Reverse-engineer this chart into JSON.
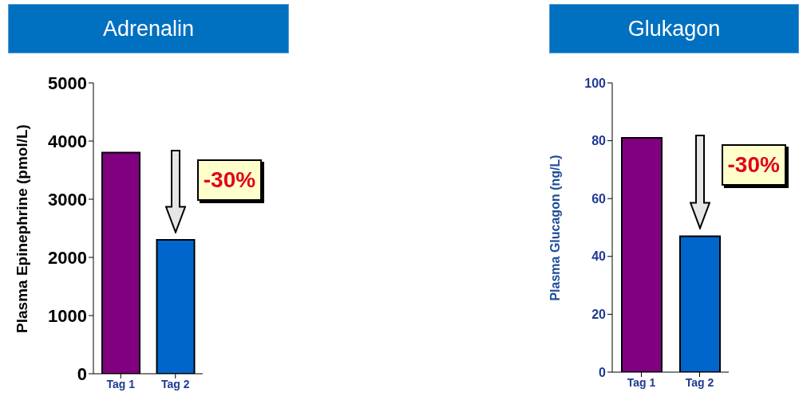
{
  "chart_data": [
    {
      "type": "bar",
      "title": "Adrenalin",
      "ylabel": "Plasma Epinephrine (pmol/L)",
      "categories": [
        "Tag 1",
        "Tag 2"
      ],
      "values": [
        3800,
        2300
      ],
      "colors": [
        "#800080",
        "#0066cc"
      ],
      "ylim": [
        0,
        5000
      ],
      "yticks": [
        0,
        1000,
        2000,
        3000,
        4000,
        5000
      ],
      "annotations": [
        "-30%"
      ]
    },
    {
      "type": "bar",
      "title": "Glukagon",
      "ylabel": "Plasma Glucagon (ng/L)",
      "categories": [
        "Tag 1",
        "Tag 2"
      ],
      "values": [
        81,
        47
      ],
      "colors": [
        "#800080",
        "#0066cc"
      ],
      "ylim": [
        0,
        100
      ],
      "yticks": [
        0,
        20,
        40,
        60,
        80,
        100
      ],
      "annotations": [
        "-30%"
      ]
    }
  ]
}
